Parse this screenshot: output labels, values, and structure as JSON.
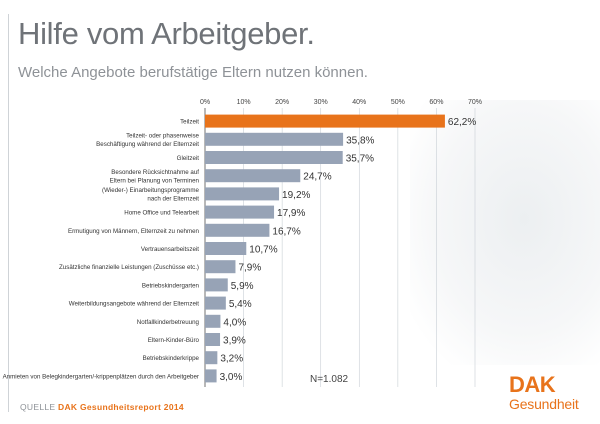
{
  "header": {
    "title": "Hilfe vom Arbeitgeber.",
    "subtitle": "Welche Angebote berufstätige Eltern nutzen können."
  },
  "chart_data": {
    "type": "bar",
    "orientation": "horizontal",
    "xlim": [
      0,
      70
    ],
    "ticks": [
      "0%",
      "10%",
      "20%",
      "30%",
      "40%",
      "50%",
      "60%",
      "70%"
    ],
    "tick_values": [
      0,
      10,
      20,
      30,
      40,
      50,
      60,
      70
    ],
    "grid": true,
    "categories": [
      "Teilzeit",
      "Teilzeit- oder phasenweise Beschäftigung während der Elternzeit",
      "Gleitzeit",
      "Besondere Rücksichtnahme auf Eltern bei Planung von Terminen",
      "(Wieder-) Einarbeitungsprogramme nach der Elternzeit",
      "Home Office und Telearbeit",
      "Ermutigung von Männern, Elternzeit zu nehmen",
      "Vertrauensarbeitszeit",
      "Zusätzliche finanzielle Leistungen (Zuschüsse etc.)",
      "Betriebskindergarten",
      "Weiterbildungsangebote während der Elternzeit",
      "Notfallkinderbetreuung",
      "Eltern-Kinder-Büro",
      "Betriebskinderkrippe",
      "Anmieten von Belegkindergarten/-krippenplätzen durch den Arbeitgeber"
    ],
    "category_lines": [
      [
        "Teilzeit"
      ],
      [
        "Teilzeit- oder phasenweise",
        "Beschäftigung während der Elternzeit"
      ],
      [
        "Gleitzeit"
      ],
      [
        "Besondere Rücksichtnahme auf",
        "Eltern bei Planung von Terminen"
      ],
      [
        "(Wieder-) Einarbeitungsprogramme",
        "nach der Elternzeit"
      ],
      [
        "Home Office und Telearbeit"
      ],
      [
        "Ermutigung von Männern, Elternzeit zu nehmen"
      ],
      [
        "Vertrauensarbeitszeit"
      ],
      [
        "Zusätzliche finanzielle Leistungen (Zuschüsse etc.)"
      ],
      [
        "Betriebskindergarten"
      ],
      [
        "Weiterbildungsangebote während der Elternzeit"
      ],
      [
        "Notfallkinderbetreuung"
      ],
      [
        "Eltern-Kinder-Büro"
      ],
      [
        "Betriebskinderkrippe"
      ],
      [
        "Anmieten von Belegkindergarten/-krippenplätzen durch den Arbeitgeber"
      ]
    ],
    "values": [
      62.2,
      35.8,
      35.7,
      24.7,
      19.2,
      17.9,
      16.7,
      10.7,
      7.9,
      5.9,
      5.4,
      4.0,
      3.9,
      3.2,
      3.0
    ],
    "value_labels": [
      "62,2%",
      "35,8%",
      "35,7%",
      "24,7%",
      "19,2%",
      "17,9%",
      "16,7%",
      "10,7%",
      "7,9%",
      "5,9%",
      "5,4%",
      "4,0%",
      "3,9%",
      "3,2%",
      "3,0%"
    ],
    "highlight_index": 0,
    "colors": {
      "highlight": "#e8731b",
      "bar": "#97a3b6",
      "grid": "#c9cfd6",
      "axis": "#555555"
    },
    "n_label": "N=1.082"
  },
  "footer": {
    "source_prefix": "QUELLE",
    "source_name": "DAK Gesundheitsreport 2014"
  },
  "logo": {
    "brand": "DAK",
    "sub": "Gesundheit",
    "color": "#e8731b"
  }
}
